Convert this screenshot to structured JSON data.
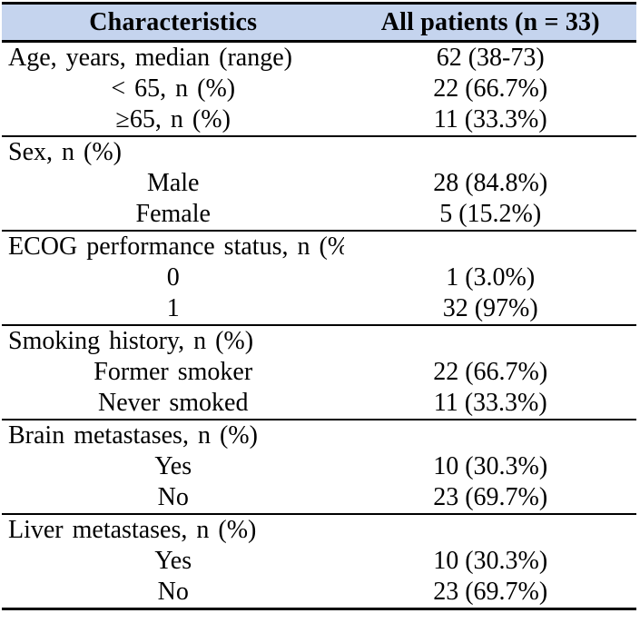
{
  "colors": {
    "header_bg": "#C5D4EE",
    "border": "#000000",
    "text": "#000000"
  },
  "table": {
    "header": {
      "characteristics": "Characteristics",
      "all_patients": "All patients (n = 33)"
    },
    "rows": [
      {
        "label": "Age, years, median (range)",
        "value": "62 (38-73)"
      },
      {
        "label": "< 65, n (%)",
        "value": "22 (66.7%)"
      },
      {
        "label": "≥65, n (%)",
        "value": "11 (33.3%)"
      },
      {
        "label": "Sex, n (%)",
        "value": ""
      },
      {
        "label": "Male",
        "value": "28 (84.8%)"
      },
      {
        "label": "Female",
        "value": "5 (15.2%)"
      },
      {
        "label": "ECOG performance status, n (%)",
        "value": ""
      },
      {
        "label": "0",
        "value": "1 (3.0%)"
      },
      {
        "label": "1",
        "value": "32 (97%)"
      },
      {
        "label": "Smoking history, n (%)",
        "value": ""
      },
      {
        "label": "Former smoker",
        "value": "22 (66.7%)"
      },
      {
        "label": "Never smoked",
        "value": "11 (33.3%)"
      },
      {
        "label": "Brain metastases, n (%)",
        "value": ""
      },
      {
        "label": "Yes",
        "value": "10 (30.3%)"
      },
      {
        "label": "No",
        "value": "23 (69.7%)"
      },
      {
        "label": "Liver metastases, n (%)",
        "value": ""
      },
      {
        "label": "Yes",
        "value": "10 (30.3%)"
      },
      {
        "label": "No",
        "value": "23 (69.7%)"
      }
    ]
  }
}
